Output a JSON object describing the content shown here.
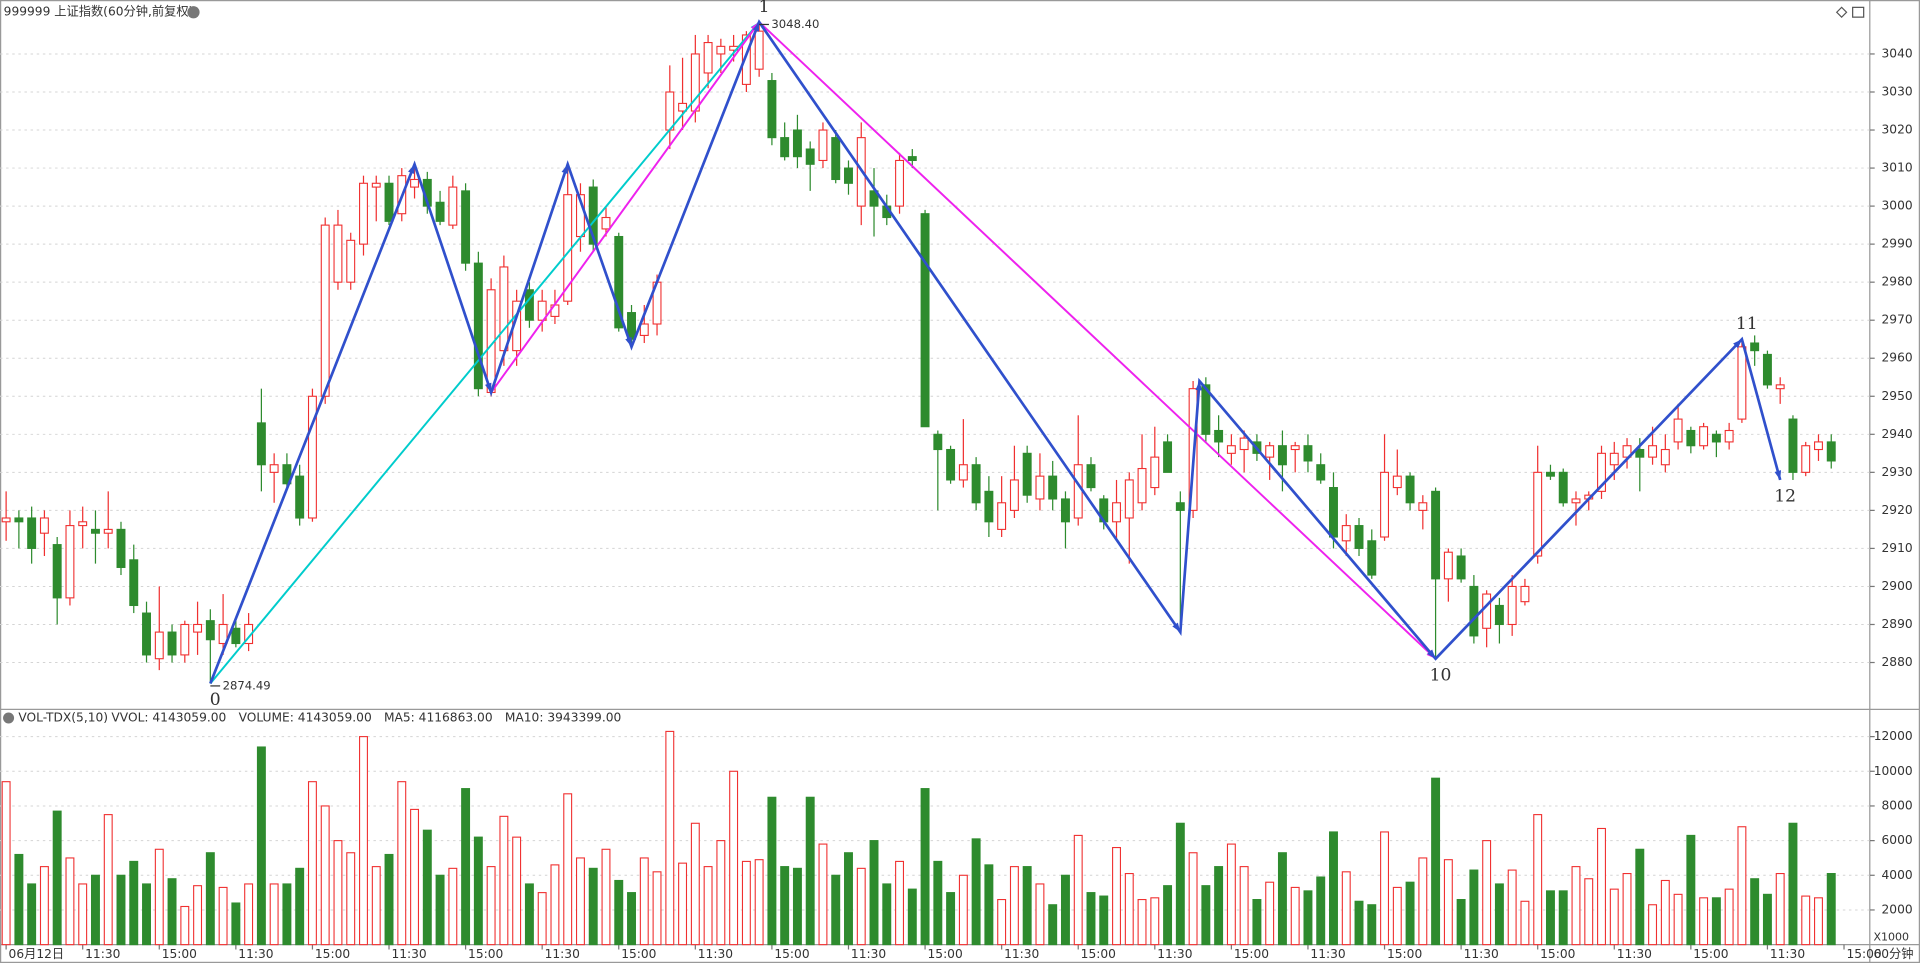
{
  "chart_data": {
    "type": "candlestick",
    "title": "999999 上证指数(60分钟,前复权)",
    "period": "60分钟",
    "up_color": "#f03030",
    "down_color": "#2e8b2e",
    "ylim": [
      2868,
      3050
    ],
    "yticks": [
      2880,
      2890,
      2900,
      2910,
      2920,
      2930,
      2940,
      2950,
      2960,
      2970,
      2980,
      2990,
      3000,
      3010,
      3020,
      3030,
      3040
    ],
    "xlim": [
      -0.5,
      146
    ],
    "xticks": [
      {
        "value": 0,
        "label": "06月12日"
      },
      {
        "value": 6,
        "label": "11:30"
      },
      {
        "value": 12,
        "label": "15:00"
      },
      {
        "value": 18,
        "label": "11:30"
      },
      {
        "value": 24,
        "label": "15:00"
      },
      {
        "value": 30,
        "label": "11:30"
      },
      {
        "value": 36,
        "label": "15:00"
      },
      {
        "value": 42,
        "label": "11:30"
      },
      {
        "value": 48,
        "label": "15:00"
      },
      {
        "value": 54,
        "label": "11:30"
      },
      {
        "value": 60,
        "label": "15:00"
      },
      {
        "value": 66,
        "label": "11:30"
      },
      {
        "value": 72,
        "label": "15:00"
      },
      {
        "value": 78,
        "label": "11:30"
      },
      {
        "value": 84,
        "label": "15:00"
      },
      {
        "value": 90,
        "label": "11:30"
      },
      {
        "value": 96,
        "label": "15:00"
      },
      {
        "value": 102,
        "label": "11:30"
      },
      {
        "value": 108,
        "label": "15:00"
      },
      {
        "value": 114,
        "label": "11:30"
      },
      {
        "value": 120,
        "label": "15:00"
      },
      {
        "value": 126,
        "label": "11:30"
      },
      {
        "value": 132,
        "label": "15:00"
      },
      {
        "value": 138,
        "label": "11:30"
      },
      {
        "value": 144,
        "label": "15:00"
      }
    ],
    "candles": [
      [
        2917,
        2925,
        2912,
        2918
      ],
      [
        2918,
        2920,
        2910,
        2917
      ],
      [
        2918,
        2921,
        2906,
        2910
      ],
      [
        2914,
        2920,
        2908,
        2918
      ],
      [
        2911,
        2913,
        2890,
        2897
      ],
      [
        2897,
        2920,
        2895,
        2916
      ],
      [
        2916,
        2921,
        2910,
        2917
      ],
      [
        2915,
        2920,
        2906,
        2914
      ],
      [
        2914,
        2925,
        2910,
        2915
      ],
      [
        2915,
        2917,
        2903,
        2905
      ],
      [
        2907,
        2911,
        2893,
        2895
      ],
      [
        2893,
        2896,
        2880,
        2882
      ],
      [
        2881,
        2900,
        2878,
        2888
      ],
      [
        2888,
        2890,
        2880,
        2882
      ],
      [
        2882,
        2891,
        2880,
        2890
      ],
      [
        2888,
        2896,
        2882,
        2890
      ],
      [
        2891,
        2894,
        2874.49,
        2886
      ],
      [
        2885,
        2898,
        2882,
        2890
      ],
      [
        2889,
        2891,
        2884,
        2885
      ],
      [
        2885,
        2893,
        2883,
        2890
      ],
      [
        2943,
        2952,
        2925,
        2932
      ],
      [
        2930,
        2935,
        2922,
        2932
      ],
      [
        2932,
        2935,
        2926,
        2927
      ],
      [
        2929,
        2932,
        2916,
        2918
      ],
      [
        2918,
        2952,
        2917,
        2950
      ],
      [
        2950,
        2997,
        2948,
        2995
      ],
      [
        2980,
        2999,
        2978,
        2995
      ],
      [
        2980,
        2993,
        2978,
        2991
      ],
      [
        2990,
        3008,
        2987,
        3006
      ],
      [
        3005,
        3008,
        2996,
        3006
      ],
      [
        3006,
        3008,
        2995,
        2996
      ],
      [
        2998,
        3010,
        2996,
        3008
      ],
      [
        3005,
        3011,
        3002,
        3007
      ],
      [
        3007,
        3009,
        2998,
        3000
      ],
      [
        3001,
        3004,
        2995,
        2996
      ],
      [
        2995,
        3008,
        2994,
        3005
      ],
      [
        3004,
        3006,
        2983,
        2985
      ],
      [
        2985,
        2988,
        2950,
        2952
      ],
      [
        2951,
        2981,
        2950,
        2978
      ],
      [
        2962,
        2987,
        2958,
        2984
      ],
      [
        2962,
        2978,
        2958,
        2975
      ],
      [
        2978,
        2980,
        2968,
        2970
      ],
      [
        2970,
        2978,
        2967,
        2975
      ],
      [
        2971,
        2978,
        2969,
        2974
      ],
      [
        2975,
        3011,
        2974,
        3003
      ],
      [
        2992,
        3006,
        2988,
        3003
      ],
      [
        3005,
        3007,
        2988,
        2990
      ],
      [
        2994,
        3000,
        2992,
        2997
      ],
      [
        2992,
        2993,
        2967,
        2968
      ],
      [
        2972,
        2974,
        2963,
        2965
      ],
      [
        2966,
        2974,
        2964,
        2969
      ],
      [
        2969,
        2982,
        2966,
        2980
      ],
      [
        3020,
        3037,
        3015,
        3030
      ],
      [
        3025,
        3039,
        3020,
        3027
      ],
      [
        3025,
        3045,
        3022,
        3040
      ],
      [
        3035,
        3045,
        3031,
        3043
      ],
      [
        3040,
        3044,
        3035,
        3042
      ],
      [
        3041,
        3045,
        3038,
        3042
      ],
      [
        3032,
        3046,
        3030,
        3045
      ],
      [
        3036,
        3048.4,
        3034,
        3046
      ],
      [
        3033,
        3035,
        3016,
        3018
      ],
      [
        3018,
        3022,
        3012,
        3013
      ],
      [
        3020,
        3024,
        3010,
        3013
      ],
      [
        3015,
        3017,
        3004,
        3011
      ],
      [
        3012,
        3022,
        3010,
        3020
      ],
      [
        3018,
        3020,
        3006,
        3007
      ],
      [
        3010,
        3012,
        3003,
        3006
      ],
      [
        3000,
        3022,
        2995,
        3018
      ],
      [
        3004,
        3010,
        2992,
        3000
      ],
      [
        3000,
        3003,
        2995,
        2997
      ],
      [
        3000,
        3014,
        2998,
        3012
      ],
      [
        3013,
        3015,
        3010,
        3012
      ],
      [
        2998,
        2999,
        2942,
        2942
      ],
      [
        2940,
        2941,
        2920,
        2936
      ],
      [
        2936,
        2937,
        2927,
        2928
      ],
      [
        2928,
        2944,
        2926,
        2932
      ],
      [
        2932,
        2934,
        2920,
        2922
      ],
      [
        2925,
        2929,
        2913,
        2917
      ],
      [
        2915,
        2929,
        2913,
        2922
      ],
      [
        2920,
        2937,
        2918,
        2928
      ],
      [
        2935,
        2937,
        2922,
        2924
      ],
      [
        2923,
        2935,
        2920,
        2929
      ],
      [
        2929,
        2933,
        2920,
        2923
      ],
      [
        2923,
        2925,
        2910,
        2917
      ],
      [
        2918,
        2945,
        2916,
        2932
      ],
      [
        2932,
        2934,
        2925,
        2926
      ],
      [
        2923,
        2924,
        2915,
        2917
      ],
      [
        2917,
        2928,
        2912,
        2922
      ],
      [
        2918,
        2930,
        2906,
        2928
      ],
      [
        2922,
        2940,
        2920,
        2931
      ],
      [
        2926,
        2942,
        2924,
        2934
      ],
      [
        2938,
        2940,
        2930,
        2930
      ],
      [
        2922,
        2925,
        2888,
        2920
      ],
      [
        2920,
        2954,
        2918,
        2952
      ],
      [
        2953,
        2955,
        2938,
        2940
      ],
      [
        2941,
        2945,
        2934,
        2938
      ],
      [
        2935,
        2940,
        2932,
        2937
      ],
      [
        2936,
        2941,
        2930,
        2939
      ],
      [
        2938,
        2940,
        2933,
        2935
      ],
      [
        2934,
        2938,
        2928,
        2937
      ],
      [
        2937,
        2941,
        2925,
        2932
      ],
      [
        2936,
        2938,
        2930,
        2937
      ],
      [
        2937,
        2940,
        2930,
        2933
      ],
      [
        2932,
        2935,
        2927,
        2928
      ],
      [
        2926,
        2930,
        2910,
        2913
      ],
      [
        2912,
        2919,
        2908,
        2916
      ],
      [
        2916,
        2918,
        2908,
        2910
      ],
      [
        2912,
        2915,
        2902,
        2903
      ],
      [
        2913,
        2940,
        2912,
        2930
      ],
      [
        2926,
        2936,
        2924,
        2929
      ],
      [
        2929,
        2930,
        2920,
        2922
      ],
      [
        2920,
        2924,
        2915,
        2922
      ],
      [
        2925,
        2926,
        2881,
        2902
      ],
      [
        2902,
        2910,
        2896,
        2909
      ],
      [
        2908,
        2910,
        2901,
        2902
      ],
      [
        2900,
        2903,
        2885,
        2887
      ],
      [
        2889,
        2899,
        2884,
        2898
      ],
      [
        2895,
        2897,
        2885,
        2890
      ],
      [
        2890,
        2903,
        2887,
        2900
      ],
      [
        2896,
        2902,
        2895,
        2900
      ],
      [
        2908,
        2937,
        2906,
        2930
      ],
      [
        2930,
        2932,
        2928,
        2929
      ],
      [
        2930,
        2931,
        2921,
        2922
      ],
      [
        2922,
        2925,
        2916,
        2923
      ],
      [
        2923,
        2925,
        2920,
        2924
      ],
      [
        2925,
        2937,
        2923,
        2935
      ],
      [
        2932,
        2938,
        2928,
        2935
      ],
      [
        2934,
        2939,
        2931,
        2937
      ],
      [
        2936,
        2939,
        2925,
        2934
      ],
      [
        2934,
        2942,
        2932,
        2937
      ],
      [
        2932,
        2940,
        2930,
        2936
      ],
      [
        2938,
        2948,
        2936,
        2944
      ],
      [
        2941,
        2942,
        2935,
        2937
      ],
      [
        2937,
        2943,
        2936,
        2942
      ],
      [
        2940,
        2941,
        2934,
        2938
      ],
      [
        2938,
        2943,
        2936,
        2941
      ],
      [
        2944,
        2965,
        2943,
        2963
      ],
      [
        2964,
        2966,
        2958,
        2962
      ],
      [
        2961,
        2962,
        2952,
        2953
      ],
      [
        2952,
        2955,
        2948,
        2953
      ],
      [
        2944,
        2945,
        2928,
        2930
      ],
      [
        2930,
        2938,
        2929,
        2937
      ],
      [
        2936,
        2940,
        2933,
        2938
      ],
      [
        2938,
        2940,
        2931,
        2933
      ]
    ],
    "extremes": [
      {
        "x": 59,
        "value": 3048.4,
        "label": "3048.40"
      },
      {
        "x": 16,
        "value": 2874.49,
        "label": "2874.49"
      }
    ],
    "waves": [
      {
        "color": "#00cccc",
        "points": [
          {
            "x": 16,
            "price": 2874.49
          },
          {
            "x": 59,
            "price": 3048.4
          }
        ]
      },
      {
        "color": "#ee22ee",
        "points": [
          {
            "x": 38,
            "price": 2951
          },
          {
            "x": 59,
            "price": 3048.4
          },
          {
            "x": 112,
            "price": 2881
          }
        ]
      },
      {
        "color": "#3050cc",
        "points": [
          {
            "x": 16,
            "price": 2874.49,
            "label": "0"
          },
          {
            "x": 32,
            "price": 3011
          },
          {
            "x": 38,
            "price": 2951
          },
          {
            "x": 44,
            "price": 3011
          },
          {
            "x": 49,
            "price": 2963
          },
          {
            "x": 59,
            "price": 3048.4,
            "label": "1"
          },
          {
            "x": 92,
            "price": 2888
          },
          {
            "x": 93.5,
            "price": 2954
          },
          {
            "x": 112,
            "price": 2881,
            "label": "10"
          },
          {
            "x": 136,
            "price": 2965,
            "label": "11"
          },
          {
            "x": 139,
            "price": 2928,
            "label": "12"
          }
        ]
      }
    ],
    "volume": {
      "header": "VOL-TDX(5,10)",
      "items": [
        {
          "text": "VVOL: 4143059.00",
          "color": "#333333"
        },
        {
          "text": "VOLUME: 4143059.00",
          "color": "#1a7fc0"
        },
        {
          "text": "MA5: 4116863.00",
          "color": "#1a7fc0"
        },
        {
          "text": "MA10: 3943399.00",
          "color": "#8a1a8a"
        }
      ],
      "unit": "X1000",
      "ylim": [
        0,
        13500
      ],
      "yticks": [
        2000,
        4000,
        6000,
        8000,
        10000,
        12000
      ],
      "values": [
        9400,
        5200,
        3500,
        4500,
        7700,
        5000,
        3500,
        4000,
        7500,
        4000,
        4800,
        3500,
        5500,
        3800,
        2200,
        3400,
        5300,
        3300,
        2400,
        3500,
        11400,
        3500,
        3500,
        4400,
        9400,
        8000,
        6000,
        5300,
        12000,
        4500,
        5200,
        9400,
        7800,
        6600,
        4000,
        4400,
        9000,
        6200,
        4500,
        7400,
        6200,
        3500,
        3000,
        4600,
        8700,
        5000,
        4400,
        5500,
        3700,
        3000,
        5000,
        4200,
        12300,
        4700,
        7000,
        4500,
        6000,
        10000,
        4800,
        4900,
        8500,
        4500,
        4400,
        8500,
        5800,
        4000,
        5300,
        4400,
        6000,
        3500,
        4800,
        3200,
        9000,
        4800,
        3000,
        4000,
        6100,
        4600,
        2600,
        4500,
        4500,
        3500,
        2300,
        4000,
        6300,
        3000,
        2800,
        5600,
        4100,
        2600,
        2700,
        3400,
        7000,
        5300,
        3400,
        4500,
        5800,
        4500,
        2600,
        3600,
        5300,
        3300,
        3100,
        3900,
        6500,
        4200,
        2500,
        2300,
        6500,
        3300,
        3600,
        5000,
        9600,
        4900,
        2600,
        4300,
        6000,
        3500,
        4300,
        2500,
        7500,
        3100,
        3100,
        4500,
        3800,
        6700,
        3200,
        4100,
        5500,
        2300,
        3700,
        2900,
        6300,
        2700,
        2700,
        3200,
        6800,
        3800,
        2900,
        4100,
        7000,
        2800,
        2700,
        4100
      ]
    }
  }
}
